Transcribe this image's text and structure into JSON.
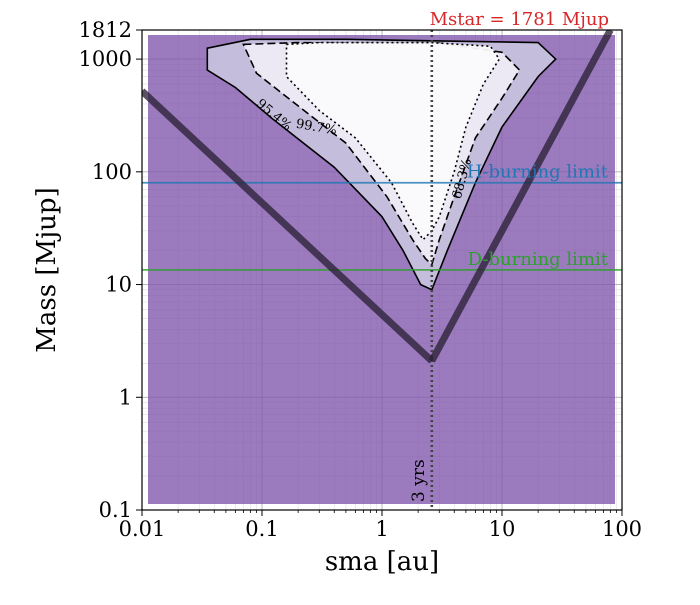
{
  "chart_data": {
    "type": "contour",
    "xlabel": "sma [au]",
    "ylabel": "Mass [Mjup]",
    "xscale": "log",
    "yscale": "log",
    "xlim": [
      0.01,
      100
    ],
    "ylim": [
      0.1,
      1812
    ],
    "grid": true,
    "x_ticks": [
      {
        "value": 0.01,
        "label": "0.01"
      },
      {
        "value": 0.1,
        "label": "0.1"
      },
      {
        "value": 1,
        "label": "1"
      },
      {
        "value": 10,
        "label": "10"
      },
      {
        "value": 100,
        "label": "100"
      }
    ],
    "y_ticks": [
      {
        "value": 0.1,
        "label": "0.1"
      },
      {
        "value": 1,
        "label": "1"
      },
      {
        "value": 10,
        "label": "10"
      },
      {
        "value": 100,
        "label": "100"
      },
      {
        "value": 1000,
        "label": "1000"
      },
      {
        "value": 1812,
        "label": "1812"
      }
    ],
    "star_mass_label": "Mstar = 1781 Mjup",
    "hlines": [
      {
        "name": "h-burning",
        "label": "H-burning limit",
        "y": 80,
        "color": "#1f77b4"
      },
      {
        "name": "d-burning",
        "label": "D-burning limit",
        "y": 13.5,
        "color": "#2ca02c"
      }
    ],
    "vline": {
      "x": 2.6,
      "label": "3 yrs"
    },
    "bounding_lines": {
      "vertex": [
        2.6,
        2.1
      ],
      "left_end": [
        0.01,
        520
      ],
      "right_end": [
        80,
        1812
      ]
    },
    "contours": [
      {
        "level": "99.7%",
        "style": "solid",
        "label": "99.7%",
        "points": [
          [
            0.035,
            1250
          ],
          [
            0.08,
            1500
          ],
          [
            0.5,
            1500
          ],
          [
            3,
            1450
          ],
          [
            20,
            1400
          ],
          [
            28,
            1000
          ],
          [
            20,
            700
          ],
          [
            10,
            250
          ],
          [
            6,
            80
          ],
          [
            3.5,
            20
          ],
          [
            2.6,
            9
          ],
          [
            2.1,
            10
          ],
          [
            1.5,
            20
          ],
          [
            1.0,
            40
          ],
          [
            0.4,
            110
          ],
          [
            0.12,
            300
          ],
          [
            0.06,
            560
          ],
          [
            0.035,
            800
          ]
        ],
        "fill": "#c7c1dd"
      },
      {
        "level": "95.4%",
        "style": "dashed",
        "label": "95.4%",
        "points": [
          [
            0.07,
            1350
          ],
          [
            0.2,
            1400
          ],
          [
            1,
            1380
          ],
          [
            3,
            1380
          ],
          [
            10,
            1150
          ],
          [
            14,
            800
          ],
          [
            10,
            450
          ],
          [
            6,
            200
          ],
          [
            4,
            60
          ],
          [
            3,
            25
          ],
          [
            2.6,
            15
          ],
          [
            2.3,
            17
          ],
          [
            1.8,
            25
          ],
          [
            1.1,
            60
          ],
          [
            0.5,
            180
          ],
          [
            0.18,
            420
          ],
          [
            0.09,
            750
          ]
        ],
        "fill": "#eeebf4"
      },
      {
        "level": "68.3%",
        "style": "dotted",
        "label": "68.3%",
        "points": [
          [
            0.16,
            1350
          ],
          [
            0.3,
            1400
          ],
          [
            1,
            1400
          ],
          [
            2.6,
            1400
          ],
          [
            8,
            1300
          ],
          [
            9.5,
            1000
          ],
          [
            7,
            600
          ],
          [
            5,
            250
          ],
          [
            4,
            100
          ],
          [
            3,
            40
          ],
          [
            2.6,
            30
          ],
          [
            2.2,
            25
          ],
          [
            1.8,
            35
          ],
          [
            1.2,
            80
          ],
          [
            0.6,
            200
          ],
          [
            0.3,
            350
          ],
          [
            0.16,
            700
          ]
        ],
        "fill": "#fbfbfd"
      }
    ],
    "contour_labels": [
      {
        "text": "95.4%",
        "x": 0.12,
        "y": 300,
        "rotate": 40
      },
      {
        "text": "99.7%",
        "x": 0.28,
        "y": 230,
        "rotate": 10
      },
      {
        "text": "68.3%",
        "x": 5.0,
        "y": 85,
        "rotate": -75
      }
    ]
  }
}
